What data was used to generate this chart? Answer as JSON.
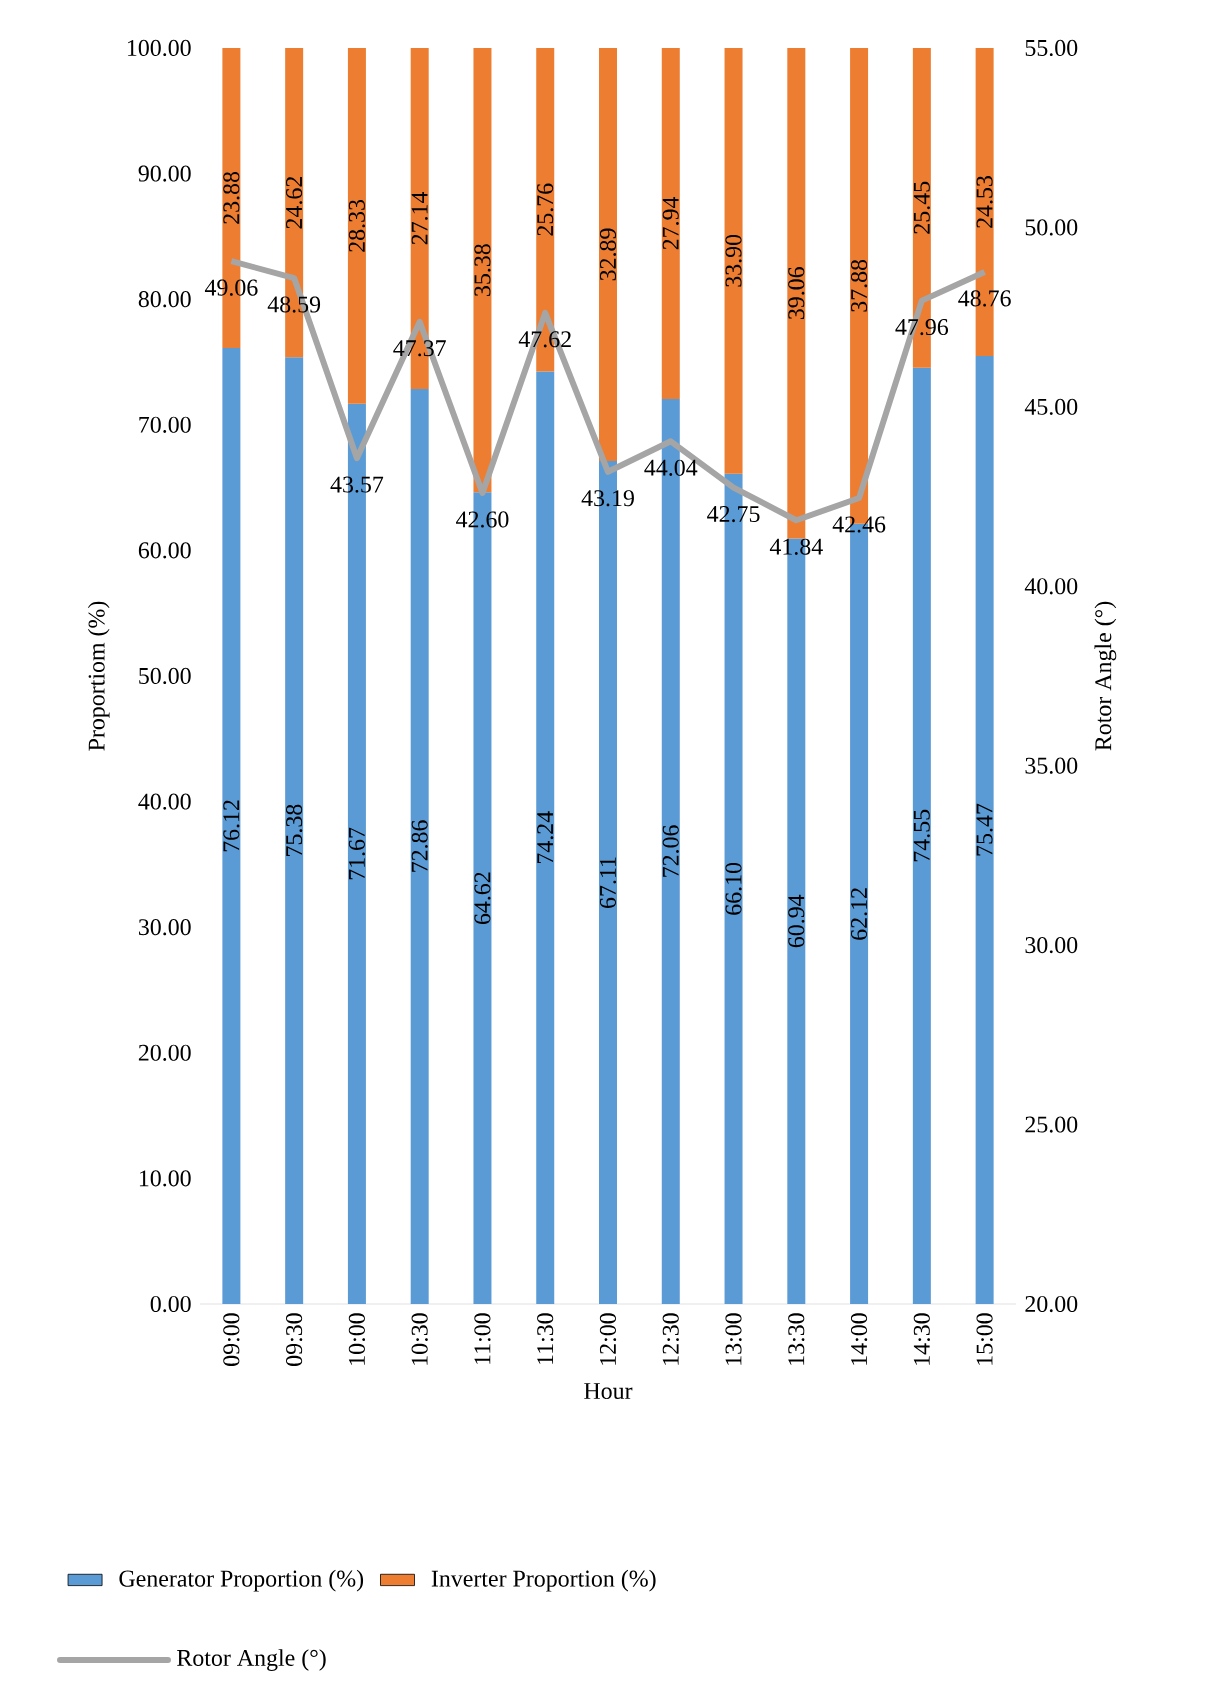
{
  "chart_data": {
    "type": "bar",
    "stacked": true,
    "xlabel": "Hour",
    "ylabel": "Proportiom (%)",
    "y2label": "Rotor Angle (°)",
    "categories": [
      "09:00",
      "09:30",
      "10:00",
      "10:30",
      "11:00",
      "11:30",
      "12:00",
      "12:30",
      "13:00",
      "13:30",
      "14:00",
      "14:30",
      "15:00"
    ],
    "series": [
      {
        "name": "Generator Proportion (%)",
        "color": "#5b9bd5",
        "values": [
          76.12,
          75.38,
          71.67,
          72.86,
          64.62,
          74.24,
          67.11,
          72.06,
          66.1,
          60.94,
          62.12,
          74.55,
          75.47
        ],
        "value_labels": [
          "76.12",
          "75.38",
          "71.67",
          "72.86",
          "64.62",
          "74.24",
          "67.11",
          "72.06",
          "66.10",
          "60.94",
          "62.12",
          "74.55",
          "75.47"
        ]
      },
      {
        "name": "Inverter Proportion (%)",
        "color": "#ed7d31",
        "values": [
          23.88,
          24.62,
          28.33,
          27.14,
          35.38,
          25.76,
          32.89,
          27.94,
          33.9,
          39.06,
          37.88,
          25.45,
          24.53
        ],
        "value_labels": [
          "23.88",
          "24.62",
          "28.33",
          "27.14",
          "35.38",
          "25.76",
          "32.89",
          "27.94",
          "33.90",
          "39.06",
          "37.88",
          "25.45",
          "24.53"
        ]
      },
      {
        "name": "Rotor Angle (°)",
        "type": "line",
        "axis": "y2",
        "color": "#a5a5a5",
        "values": [
          49.06,
          48.59,
          43.57,
          47.37,
          42.6,
          47.62,
          43.19,
          44.04,
          42.75,
          41.84,
          42.46,
          47.96,
          48.76
        ],
        "value_labels": [
          "49.06",
          "48.59",
          "43.57",
          "47.37",
          "42.60",
          "47.62",
          "43.19",
          "44.04",
          "42.75",
          "41.84",
          "42.46",
          "47.96",
          "48.76"
        ]
      }
    ],
    "ylim": [
      0,
      100
    ],
    "yticks": [
      {
        "value": 0,
        "label": "0.00"
      },
      {
        "value": 10,
        "label": "10.00"
      },
      {
        "value": 20,
        "label": "20.00"
      },
      {
        "value": 30,
        "label": "30.00"
      },
      {
        "value": 40,
        "label": "40.00"
      },
      {
        "value": 50,
        "label": "50.00"
      },
      {
        "value": 60,
        "label": "60.00"
      },
      {
        "value": 70,
        "label": "70.00"
      },
      {
        "value": 80,
        "label": "80.00"
      },
      {
        "value": 90,
        "label": "90.00"
      },
      {
        "value": 100,
        "label": "100.00"
      }
    ],
    "y2lim": [
      20,
      55
    ],
    "y2ticks": [
      {
        "value": 20,
        "label": "20.00"
      },
      {
        "value": 25,
        "label": "25.00"
      },
      {
        "value": 30,
        "label": "30.00"
      },
      {
        "value": 35,
        "label": "35.00"
      },
      {
        "value": 40,
        "label": "40.00"
      },
      {
        "value": 45,
        "label": "45.00"
      },
      {
        "value": 50,
        "label": "50.00"
      },
      {
        "value": 55,
        "label": "55.00"
      }
    ],
    "legend": "bottom",
    "marker": "none",
    "line_style": "solid"
  }
}
